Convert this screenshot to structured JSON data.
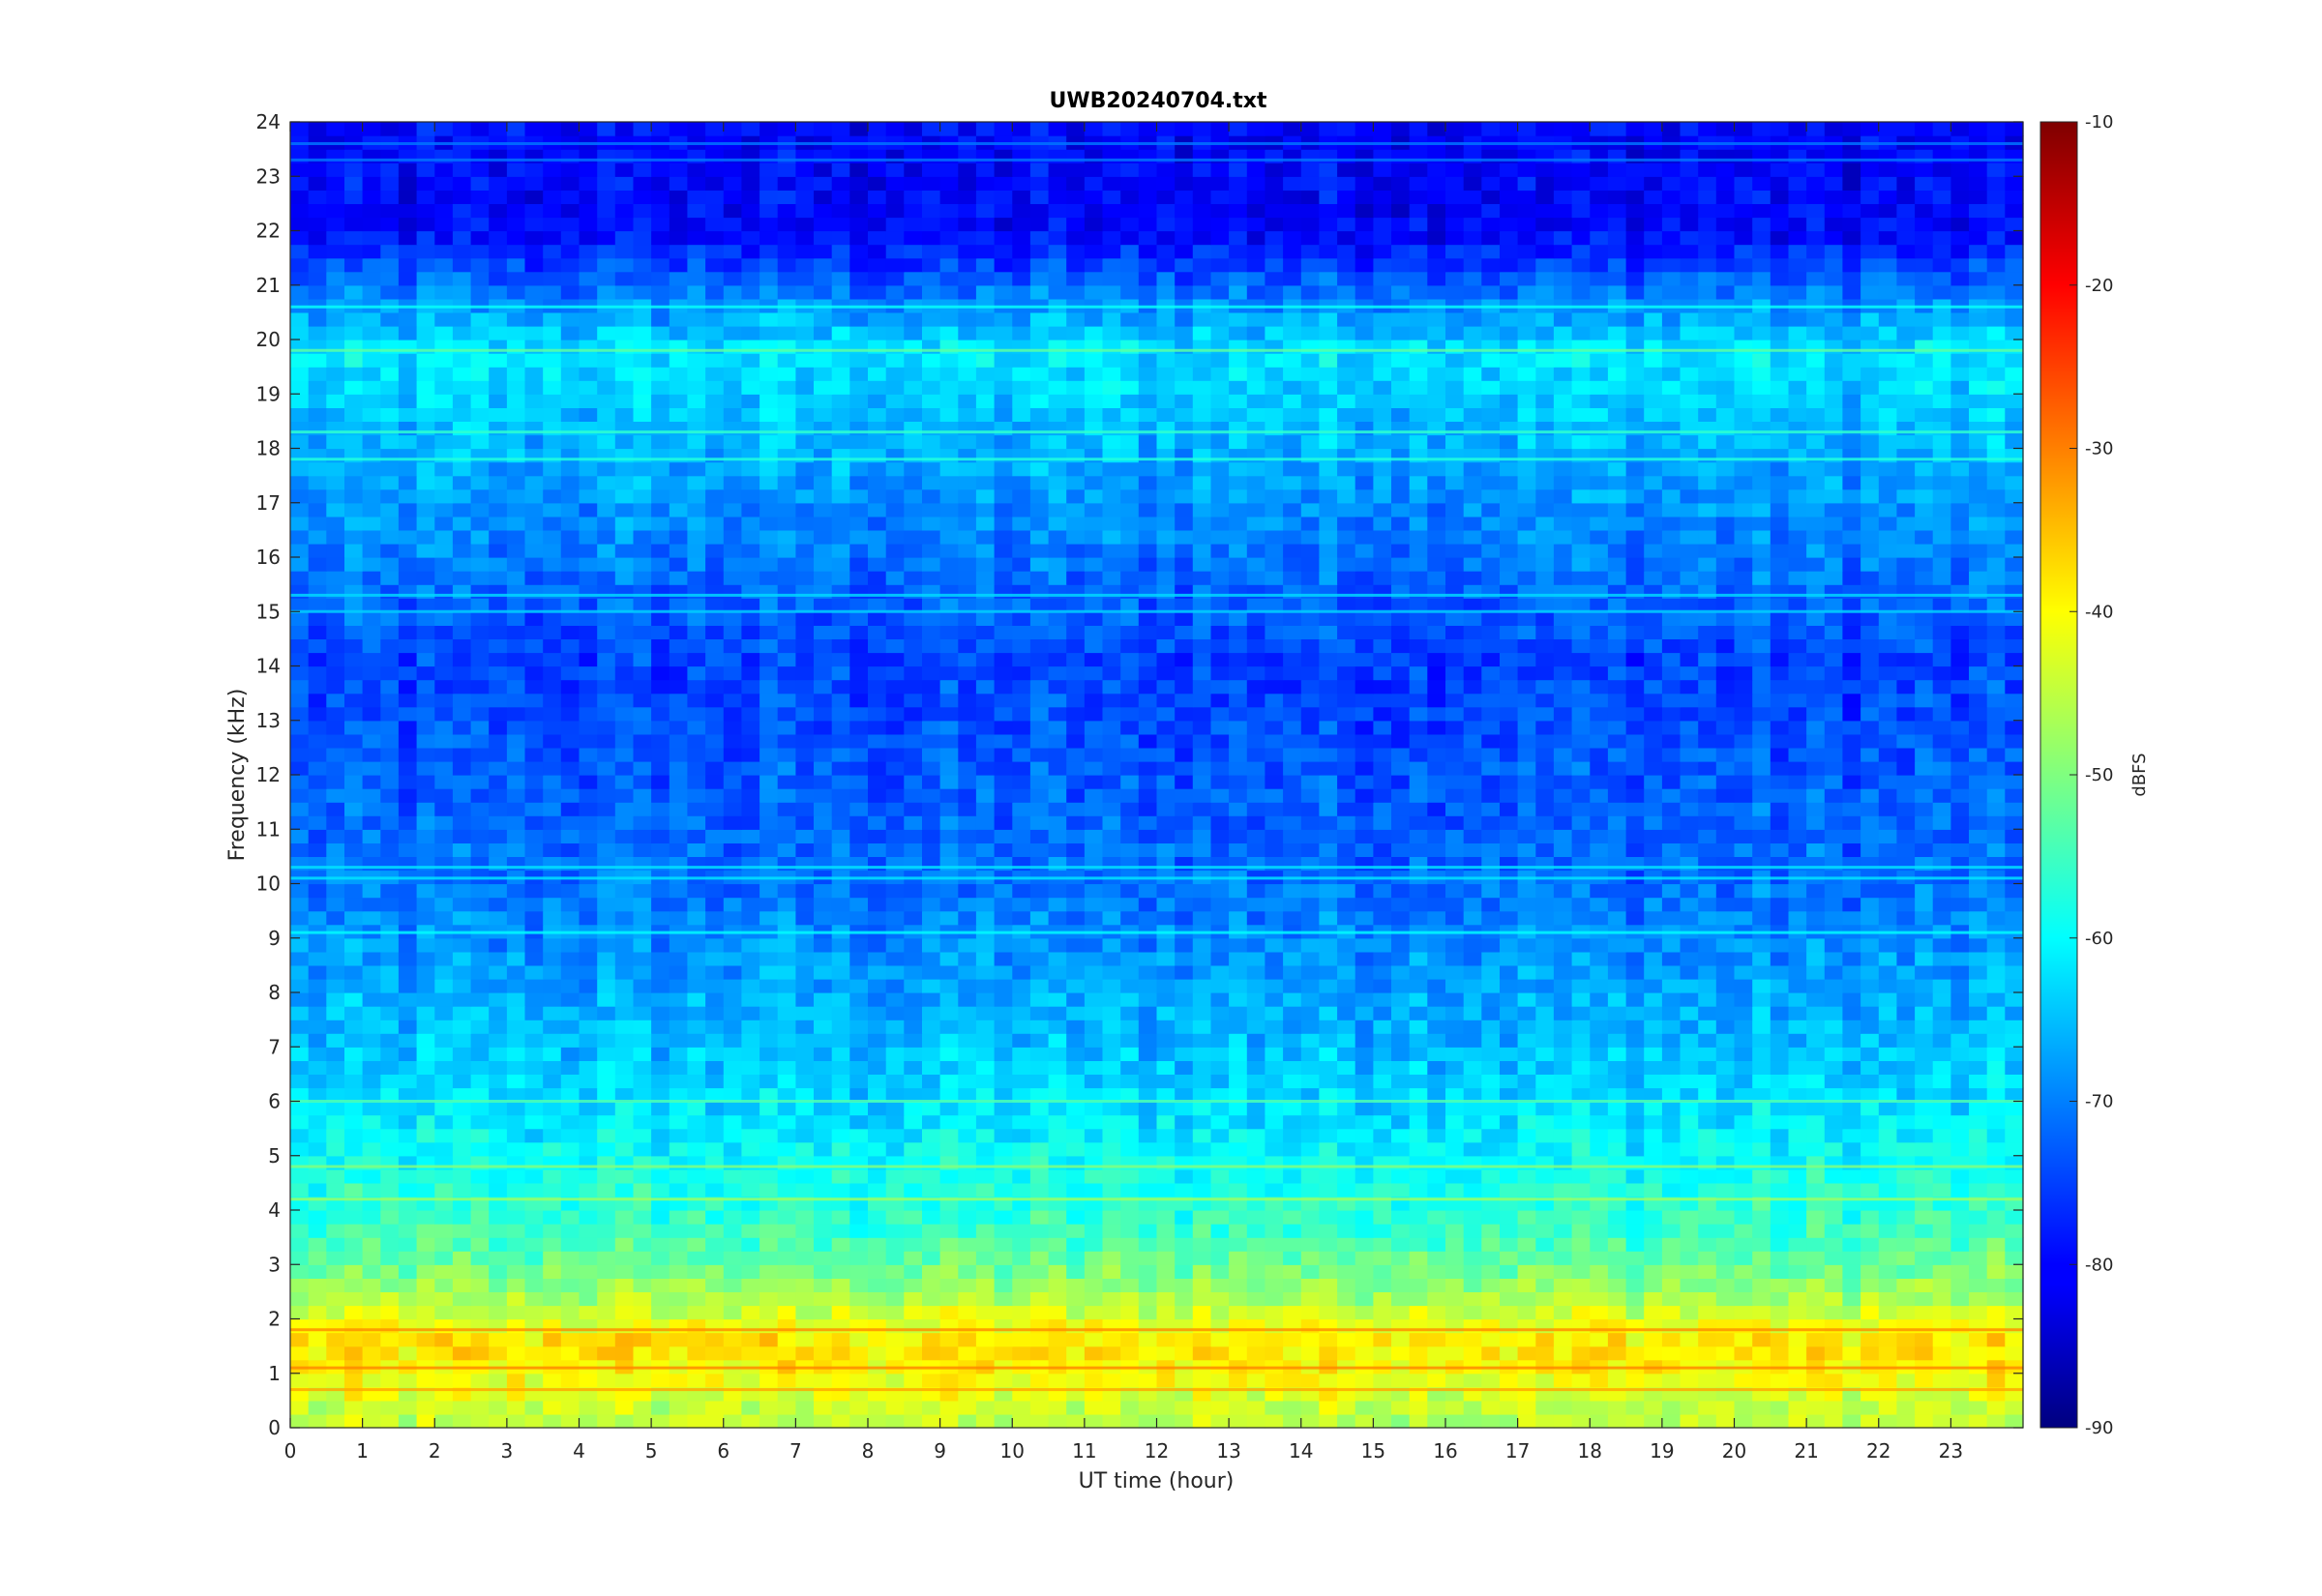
{
  "chart_data": {
    "type": "heatmap",
    "title": "UWB20240704.txt",
    "xlabel": "UT time (hour)",
    "ylabel": "Frequency (kHz)",
    "xlim": [
      0,
      24
    ],
    "ylim": [
      0,
      24
    ],
    "x_ticks": [
      0,
      1,
      2,
      3,
      4,
      5,
      6,
      7,
      8,
      9,
      10,
      11,
      12,
      13,
      14,
      15,
      16,
      17,
      18,
      19,
      20,
      21,
      22,
      23
    ],
    "y_ticks": [
      0,
      1,
      2,
      3,
      4,
      5,
      6,
      7,
      8,
      9,
      10,
      11,
      12,
      13,
      14,
      15,
      16,
      17,
      18,
      19,
      20,
      21,
      22,
      23,
      24
    ],
    "colormap": "jet",
    "colorbar": {
      "label": "dBFS",
      "range": [
        -90,
        -10
      ],
      "ticks": [
        -90,
        -80,
        -70,
        -60,
        -50,
        -40,
        -30,
        -20,
        -10
      ]
    },
    "grid": false,
    "level_profile": [
      {
        "freq_khz": 0.3,
        "level_dbfs": -45
      },
      {
        "freq_khz": 1.0,
        "level_dbfs": -40
      },
      {
        "freq_khz": 1.6,
        "level_dbfs": -38
      },
      {
        "freq_khz": 2.5,
        "level_dbfs": -48
      },
      {
        "freq_khz": 3.5,
        "level_dbfs": -55
      },
      {
        "freq_khz": 4.5,
        "level_dbfs": -58
      },
      {
        "freq_khz": 6.0,
        "level_dbfs": -63
      },
      {
        "freq_khz": 8.0,
        "level_dbfs": -67
      },
      {
        "freq_khz": 10.0,
        "level_dbfs": -71
      },
      {
        "freq_khz": 14.0,
        "level_dbfs": -75
      },
      {
        "freq_khz": 19.8,
        "level_dbfs": -62
      },
      {
        "freq_khz": 22.0,
        "level_dbfs": -80
      }
    ],
    "bands_khz": [
      0.7,
      1.1,
      1.8,
      4.2,
      4.8,
      6.0,
      9.1,
      10.1,
      10.3,
      15.0,
      15.3,
      17.8,
      18.3,
      19.8,
      20.6,
      23.3,
      23.6
    ]
  }
}
